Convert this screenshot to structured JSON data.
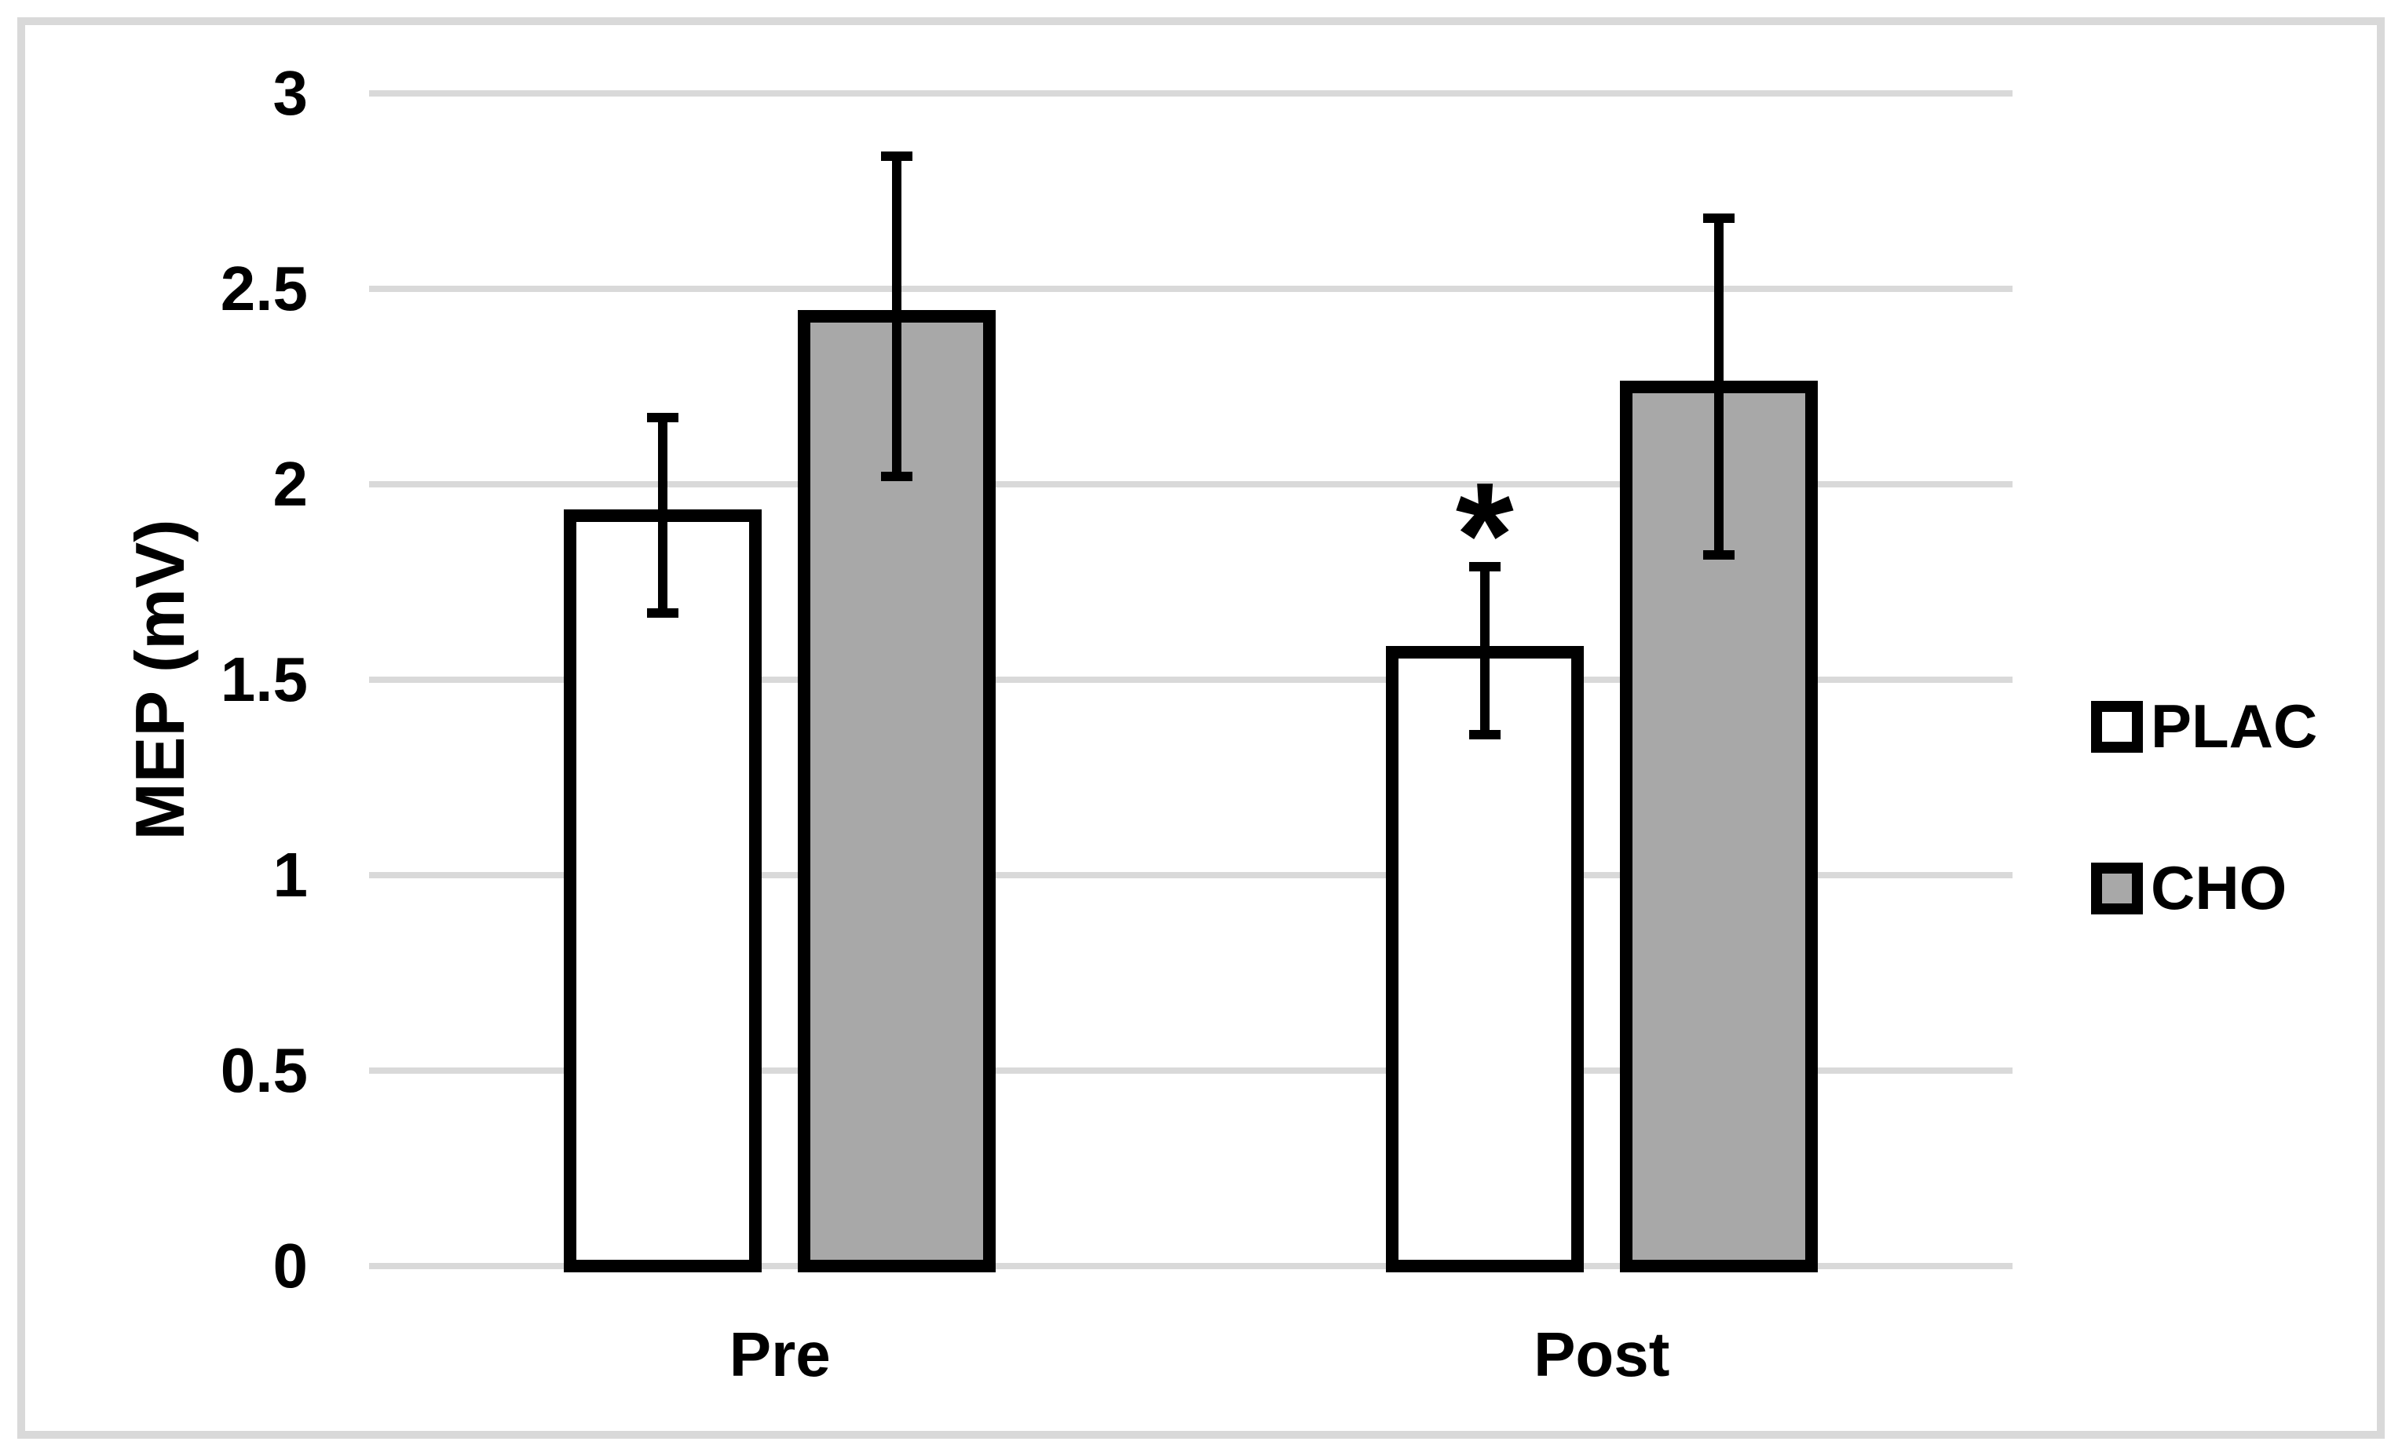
{
  "figure": {
    "background_color": "#ffffff",
    "border_color": "#d9d9d9"
  },
  "chart_data": {
    "type": "bar",
    "title": "",
    "xlabel": "",
    "ylabel": "MEP (mV)",
    "categories": [
      "Pre",
      "Post"
    ],
    "series": [
      {
        "name": "PLAC",
        "fill": "#ffffff",
        "values": [
          1.92,
          1.57
        ],
        "error_upper": [
          2.17,
          1.79
        ],
        "error_lower": [
          1.67,
          1.36
        ]
      },
      {
        "name": "CHO",
        "fill": "#a8a8a8",
        "values": [
          2.43,
          2.25
        ],
        "error_upper": [
          2.84,
          2.68
        ],
        "error_lower": [
          2.02,
          1.82
        ]
      }
    ],
    "annotations": [
      {
        "text": "*",
        "category": "Post",
        "series": "PLAC",
        "value": 1.97
      }
    ],
    "ylim": [
      0,
      3
    ],
    "ytick_values": [
      3,
      2.5,
      2,
      1.5,
      1,
      0.5,
      0
    ],
    "ytick_labels": [
      "3",
      "2.5",
      "2",
      "1.5",
      "1",
      "0.5",
      "0"
    ],
    "grid": true,
    "gridline_color": "#d9d9d9",
    "bar_border_color": "#000000",
    "error_bar_color": "#000000",
    "legend_position": "right"
  },
  "legend": {
    "items": [
      {
        "label": "PLAC",
        "fill": "#ffffff"
      },
      {
        "label": "CHO",
        "fill": "#a8a8a8"
      }
    ]
  }
}
